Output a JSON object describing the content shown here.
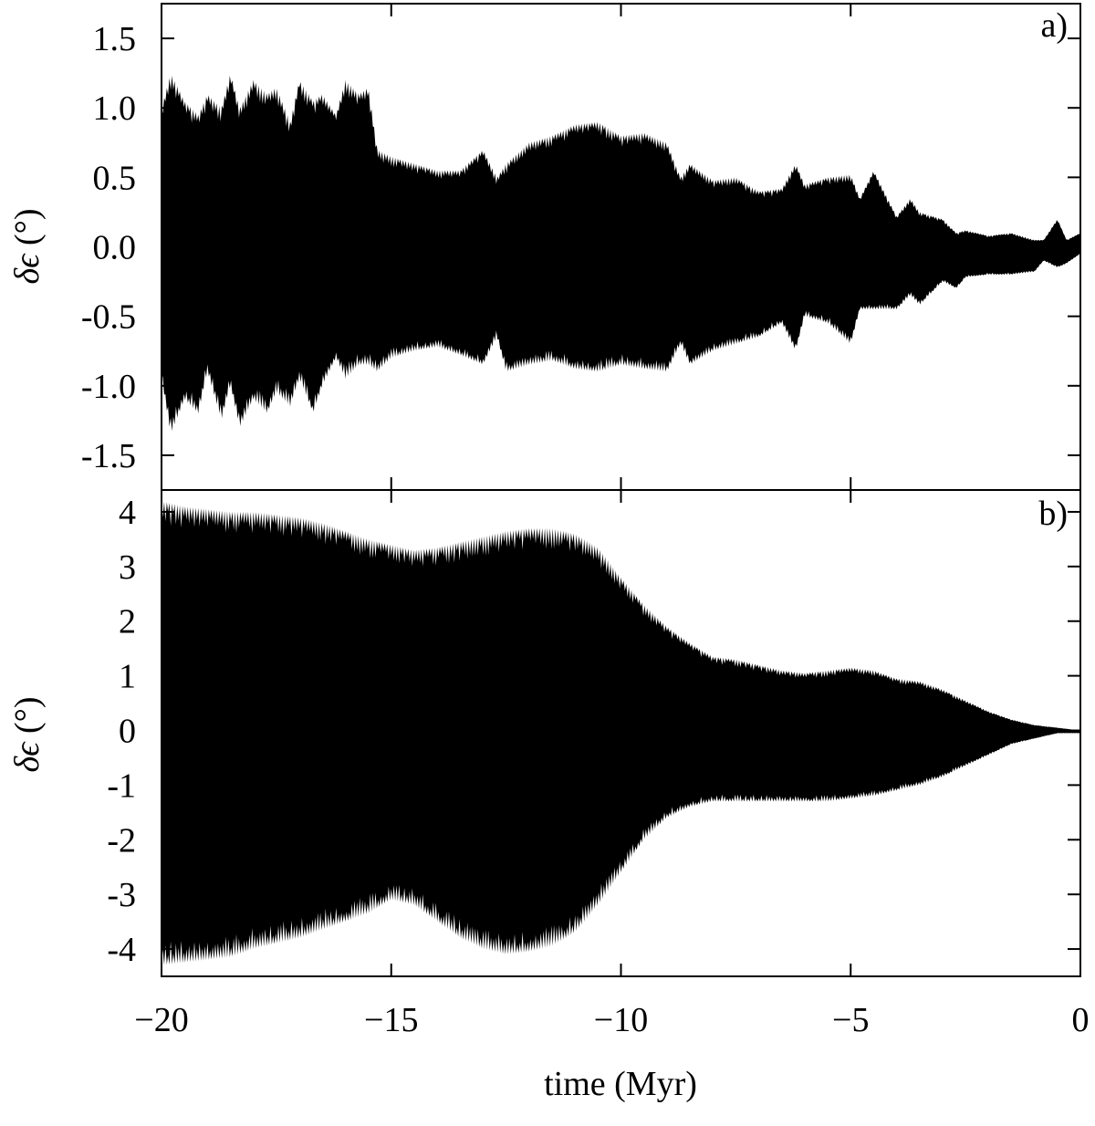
{
  "chart_data": [
    {
      "type": "area",
      "panel_label": "a)",
      "ylabel_symbol": "δϵ",
      "ylabel_unit": "(°)",
      "xlim": [
        -20,
        0
      ],
      "ylim": [
        -1.75,
        1.75
      ],
      "yticks": [
        -1.5,
        -1.0,
        -0.5,
        0.0,
        0.5,
        1.0,
        1.5
      ],
      "ytick_labels": [
        "-1.5",
        "-1.0",
        "-0.5",
        "0.0",
        "0.5",
        "1.0",
        "1.5"
      ],
      "xticks": [
        -20,
        -15,
        -10,
        -5,
        0
      ],
      "grid": false,
      "series": [
        {
          "color": "#000000",
          "x": [
            -20,
            -19.8,
            -19.5,
            -19.2,
            -19.0,
            -18.7,
            -18.5,
            -18.3,
            -18.0,
            -17.7,
            -17.5,
            -17.2,
            -17.0,
            -16.7,
            -16.5,
            -16.2,
            -16.0,
            -15.7,
            -15.5,
            -15.3,
            -15.0,
            -14.5,
            -14.0,
            -13.5,
            -13.0,
            -12.7,
            -12.5,
            -12.0,
            -11.5,
            -11.0,
            -10.5,
            -10.0,
            -9.5,
            -9.0,
            -8.7,
            -8.5,
            -8.0,
            -7.5,
            -7.0,
            -6.5,
            -6.2,
            -6.0,
            -5.5,
            -5.0,
            -4.8,
            -4.5,
            -4.0,
            -3.7,
            -3.5,
            -3.0,
            -2.7,
            -2.5,
            -2.0,
            -1.5,
            -1.0,
            -0.8,
            -0.5,
            -0.3,
            0
          ],
          "upper": [
            1.0,
            1.25,
            1.05,
            0.95,
            1.1,
            1.0,
            1.25,
            1.0,
            1.2,
            1.1,
            1.15,
            0.9,
            1.2,
            1.05,
            1.1,
            0.95,
            1.2,
            1.1,
            1.15,
            0.7,
            0.65,
            0.6,
            0.55,
            0.55,
            0.7,
            0.5,
            0.6,
            0.75,
            0.8,
            0.88,
            0.9,
            0.8,
            0.82,
            0.75,
            0.5,
            0.6,
            0.48,
            0.5,
            0.4,
            0.42,
            0.6,
            0.45,
            0.5,
            0.52,
            0.35,
            0.55,
            0.22,
            0.35,
            0.25,
            0.2,
            0.1,
            0.12,
            0.08,
            0.1,
            0.05,
            0.05,
            0.2,
            0.05,
            0.1
          ],
          "lower": [
            -0.95,
            -1.35,
            -1.1,
            -1.2,
            -0.9,
            -1.25,
            -1.0,
            -1.3,
            -1.1,
            -1.2,
            -1.05,
            -1.15,
            -0.95,
            -1.2,
            -1.0,
            -0.8,
            -0.95,
            -0.85,
            -0.85,
            -0.9,
            -0.8,
            -0.75,
            -0.72,
            -0.78,
            -0.85,
            -0.65,
            -0.9,
            -0.85,
            -0.82,
            -0.88,
            -0.9,
            -0.85,
            -0.88,
            -0.9,
            -0.7,
            -0.85,
            -0.75,
            -0.7,
            -0.65,
            -0.55,
            -0.75,
            -0.5,
            -0.55,
            -0.7,
            -0.45,
            -0.45,
            -0.45,
            -0.35,
            -0.42,
            -0.25,
            -0.3,
            -0.22,
            -0.2,
            -0.2,
            -0.18,
            -0.1,
            -0.15,
            -0.12,
            -0.05
          ]
        }
      ]
    },
    {
      "type": "area",
      "panel_label": "b)",
      "ylabel_symbol": "δϵ",
      "ylabel_unit": "(°)",
      "xlabel": "time (Myr)",
      "xlim": [
        -20,
        0
      ],
      "ylim": [
        -4.5,
        4.4
      ],
      "yticks": [
        -4,
        -3,
        -2,
        -1,
        0,
        1,
        2,
        3,
        4
      ],
      "ytick_labels": [
        "-4",
        "-3",
        "-2",
        "-1",
        "0",
        "1",
        "2",
        "3",
        "4"
      ],
      "xticks": [
        -20,
        -15,
        -10,
        -5,
        0
      ],
      "xtick_labels": [
        "−20",
        "−15",
        "−10",
        "−5",
        "0"
      ],
      "grid": false,
      "series": [
        {
          "color": "#000000",
          "x": [
            -20,
            -19.5,
            -19.0,
            -18.5,
            -18.0,
            -17.5,
            -17.0,
            -16.5,
            -16.0,
            -15.5,
            -15.0,
            -14.5,
            -14.0,
            -13.5,
            -13.0,
            -12.5,
            -12.0,
            -11.5,
            -11.0,
            -10.5,
            -10.0,
            -9.5,
            -9.0,
            -8.5,
            -8.0,
            -7.5,
            -7.0,
            -6.5,
            -6.0,
            -5.5,
            -5.0,
            -4.5,
            -4.0,
            -3.5,
            -3.0,
            -2.5,
            -2.0,
            -1.5,
            -1.0,
            -0.5,
            0
          ],
          "upper": [
            4.2,
            4.1,
            4.05,
            4.0,
            4.0,
            3.95,
            3.9,
            3.8,
            3.65,
            3.5,
            3.4,
            3.3,
            3.35,
            3.45,
            3.55,
            3.65,
            3.7,
            3.7,
            3.6,
            3.35,
            2.8,
            2.3,
            1.9,
            1.6,
            1.35,
            1.3,
            1.2,
            1.1,
            1.05,
            1.1,
            1.15,
            1.1,
            0.95,
            0.9,
            0.75,
            0.55,
            0.35,
            0.2,
            0.1,
            0.05,
            0.0
          ],
          "lower": [
            -4.3,
            -4.25,
            -4.2,
            -4.15,
            -4.0,
            -3.9,
            -3.8,
            -3.65,
            -3.5,
            -3.35,
            -3.1,
            -3.2,
            -3.5,
            -3.8,
            -4.0,
            -4.1,
            -4.05,
            -3.95,
            -3.7,
            -3.2,
            -2.6,
            -2.0,
            -1.6,
            -1.4,
            -1.3,
            -1.3,
            -1.3,
            -1.3,
            -1.3,
            -1.3,
            -1.25,
            -1.2,
            -1.1,
            -1.0,
            -0.85,
            -0.65,
            -0.45,
            -0.25,
            -0.15,
            -0.05,
            -0.05
          ]
        }
      ]
    }
  ]
}
